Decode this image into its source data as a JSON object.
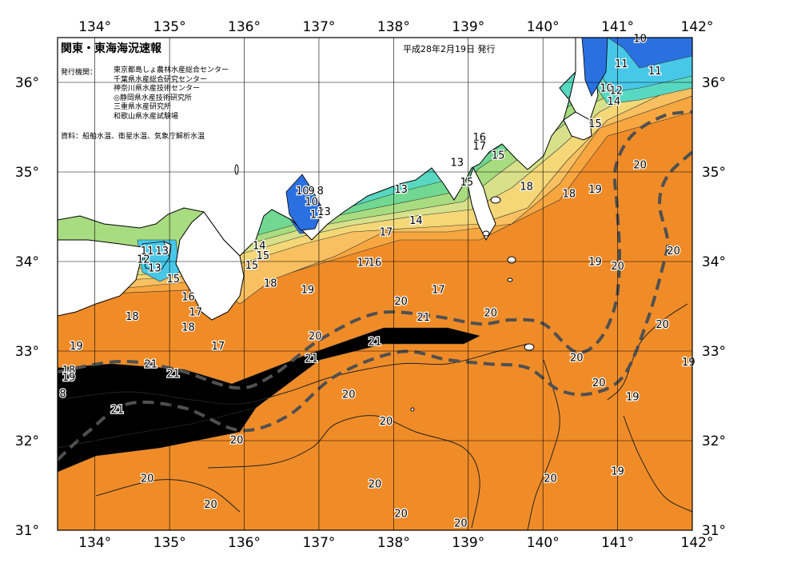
{
  "header": {
    "title": "関東・東海海況速報",
    "date": "平成28年2月19日 発行",
    "issuer_label": "発行機関：",
    "issuers": [
      "東京都島しょ農林水産総合センター",
      "千葉県水産総合研究センター",
      "神奈川県水産技術センター",
      "◎静岡県水産技術研究所",
      "三重県水産研究所",
      "和歌山県水産試験場"
    ],
    "source": "資料：船舶水温、衛星水温、気象庁解析水温"
  },
  "axes": {
    "longitude_labels": [
      "134°",
      "135°",
      "136°",
      "137°",
      "138°",
      "139°",
      "140°",
      "141°",
      "142°"
    ],
    "latitude_labels": [
      "36°",
      "35°",
      "34°",
      "33°",
      "32°",
      "31°"
    ]
  },
  "colors": {
    "sea_warm_21": "#e8701c",
    "sea_20": "#f08c28",
    "sea_19": "#f7a640",
    "sea_18": "#f8c060",
    "sea_17": "#f4d878",
    "sea_16": "#d8e08a",
    "sea_15": "#a8dc80",
    "sea_14": "#70d890",
    "sea_13": "#58d8c0",
    "sea_12": "#48c8e8",
    "sea_cold_10": "#2a70e0",
    "land": "#ffffff",
    "kuroshio_axis": "#505050"
  },
  "kuroshio_axis_style": "dashed",
  "contour_labels": [
    {
      "text": "10",
      "lon": 141.3,
      "lat": 36.48
    },
    {
      "text": "11",
      "lon": 141.05,
      "lat": 36.2
    },
    {
      "text": "11",
      "lon": 141.5,
      "lat": 36.12
    },
    {
      "text": "10",
      "lon": 140.85,
      "lat": 35.93
    },
    {
      "text": "12",
      "lon": 140.98,
      "lat": 35.9
    },
    {
      "text": "14",
      "lon": 140.95,
      "lat": 35.78
    },
    {
      "text": "15",
      "lon": 140.7,
      "lat": 35.53
    },
    {
      "text": "16",
      "lon": 139.15,
      "lat": 35.38
    },
    {
      "text": "17",
      "lon": 139.15,
      "lat": 35.28
    },
    {
      "text": "15",
      "lon": 139.4,
      "lat": 35.18
    },
    {
      "text": "13",
      "lon": 138.85,
      "lat": 35.1
    },
    {
      "text": "15",
      "lon": 138.98,
      "lat": 34.88
    },
    {
      "text": "18",
      "lon": 139.78,
      "lat": 34.83
    },
    {
      "text": "18",
      "lon": 140.35,
      "lat": 34.75
    },
    {
      "text": "19",
      "lon": 140.7,
      "lat": 34.8
    },
    {
      "text": "20",
      "lon": 141.3,
      "lat": 35.07
    },
    {
      "text": "13",
      "lon": 138.1,
      "lat": 34.8
    },
    {
      "text": "10",
      "lon": 136.78,
      "lat": 34.78
    },
    {
      "text": "9",
      "lon": 136.9,
      "lat": 34.78
    },
    {
      "text": "8",
      "lon": 137.02,
      "lat": 34.78
    },
    {
      "text": "10",
      "lon": 136.9,
      "lat": 34.66
    },
    {
      "text": "11",
      "lon": 136.97,
      "lat": 34.52
    },
    {
      "text": "13",
      "lon": 137.07,
      "lat": 34.55
    },
    {
      "text": "14",
      "lon": 138.3,
      "lat": 34.45
    },
    {
      "text": "17",
      "lon": 137.9,
      "lat": 34.32
    },
    {
      "text": "17",
      "lon": 137.6,
      "lat": 33.98
    },
    {
      "text": "16",
      "lon": 137.75,
      "lat": 33.98
    },
    {
      "text": "17",
      "lon": 138.6,
      "lat": 33.68
    },
    {
      "text": "14",
      "lon": 136.2,
      "lat": 34.17
    },
    {
      "text": "15",
      "lon": 136.25,
      "lat": 34.06
    },
    {
      "text": "15",
      "lon": 136.1,
      "lat": 33.95
    },
    {
      "text": "18",
      "lon": 136.35,
      "lat": 33.75
    },
    {
      "text": "19",
      "lon": 136.85,
      "lat": 33.68
    },
    {
      "text": "11",
      "lon": 134.7,
      "lat": 34.11
    },
    {
      "text": "13",
      "lon": 134.9,
      "lat": 34.11
    },
    {
      "text": "12",
      "lon": 134.65,
      "lat": 34.02
    },
    {
      "text": "13",
      "lon": 134.8,
      "lat": 33.92
    },
    {
      "text": "15",
      "lon": 135.05,
      "lat": 33.8
    },
    {
      "text": "16",
      "lon": 135.25,
      "lat": 33.6
    },
    {
      "text": "18",
      "lon": 134.5,
      "lat": 33.38
    },
    {
      "text": "17",
      "lon": 135.35,
      "lat": 33.43
    },
    {
      "text": "18",
      "lon": 135.25,
      "lat": 33.26
    },
    {
      "text": "17",
      "lon": 135.65,
      "lat": 33.05
    },
    {
      "text": "19",
      "lon": 133.75,
      "lat": 33.05
    },
    {
      "text": "18",
      "lon": 133.65,
      "lat": 32.78
    },
    {
      "text": "19",
      "lon": 133.65,
      "lat": 32.7
    },
    {
      "text": "8",
      "lon": 133.57,
      "lat": 32.52
    },
    {
      "text": "21",
      "lon": 134.3,
      "lat": 32.34
    },
    {
      "text": "21",
      "lon": 134.75,
      "lat": 32.85
    },
    {
      "text": "21",
      "lon": 135.05,
      "lat": 32.74
    },
    {
      "text": "20",
      "lon": 136.95,
      "lat": 33.16
    },
    {
      "text": "21",
      "lon": 136.9,
      "lat": 32.91
    },
    {
      "text": "21",
      "lon": 137.75,
      "lat": 33.1
    },
    {
      "text": "20",
      "lon": 138.1,
      "lat": 33.55
    },
    {
      "text": "21",
      "lon": 138.4,
      "lat": 33.37
    },
    {
      "text": "20",
      "lon": 139.3,
      "lat": 33.42
    },
    {
      "text": "19",
      "lon": 140.7,
      "lat": 33.99
    },
    {
      "text": "20",
      "lon": 141.0,
      "lat": 33.94
    },
    {
      "text": "20",
      "lon": 141.75,
      "lat": 34.11
    },
    {
      "text": "20",
      "lon": 141.6,
      "lat": 33.29
    },
    {
      "text": "19",
      "lon": 141.95,
      "lat": 32.87
    },
    {
      "text": "20",
      "lon": 140.45,
      "lat": 32.92
    },
    {
      "text": "20",
      "lon": 140.75,
      "lat": 32.64
    },
    {
      "text": "19",
      "lon": 141.2,
      "lat": 32.48
    },
    {
      "text": "19",
      "lon": 141.0,
      "lat": 31.65
    },
    {
      "text": "20",
      "lon": 137.4,
      "lat": 32.51
    },
    {
      "text": "20",
      "lon": 135.9,
      "lat": 32.0
    },
    {
      "text": "20",
      "lon": 137.9,
      "lat": 32.21
    },
    {
      "text": "20",
      "lon": 134.7,
      "lat": 31.57
    },
    {
      "text": "20",
      "lon": 135.55,
      "lat": 31.28
    },
    {
      "text": "20",
      "lon": 137.75,
      "lat": 31.51
    },
    {
      "text": "20",
      "lon": 140.1,
      "lat": 31.57
    },
    {
      "text": "20",
      "lon": 138.1,
      "lat": 31.18
    },
    {
      "text": "20",
      "lon": 138.9,
      "lat": 31.07
    }
  ]
}
